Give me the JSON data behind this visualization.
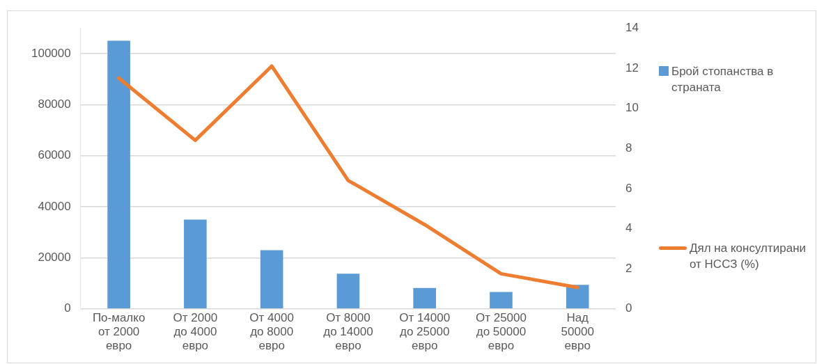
{
  "chart_data": {
    "type": "bar",
    "categories": [
      [
        "По-малко",
        "от 2000",
        "евро"
      ],
      [
        "От 2000",
        "до 4000",
        "евро"
      ],
      [
        "От 4000",
        "до 8000",
        "евро"
      ],
      [
        "От 8000",
        "до 14000",
        "евро"
      ],
      [
        "От 14000",
        "до 25000",
        "евро"
      ],
      [
        "От 25000",
        "до 50000",
        "евро"
      ],
      [
        "Над",
        "50000",
        "евро"
      ]
    ],
    "series": [
      {
        "name": "Брой стопанства в страната",
        "color": "#5b9bd5",
        "values": [
          105000,
          35000,
          23000,
          13800,
          8200,
          6600,
          9400
        ]
      },
      {
        "name": "Дял на консултирани от НССЗ (%)",
        "type": "line",
        "axis": "y2",
        "color": "#ed7d31",
        "values": [
          11.5,
          8.4,
          12.1,
          6.4,
          4.2,
          1.75,
          1.07
        ]
      }
    ],
    "ylim": [
      0,
      110000
    ],
    "yticks": [
      0,
      20000,
      40000,
      60000,
      80000,
      100000
    ],
    "y2lim": [
      0,
      14
    ],
    "y2ticks": [
      0,
      2,
      4,
      6,
      8,
      10,
      12,
      14
    ],
    "grid": "y",
    "legend": "right",
    "marker": "none"
  }
}
